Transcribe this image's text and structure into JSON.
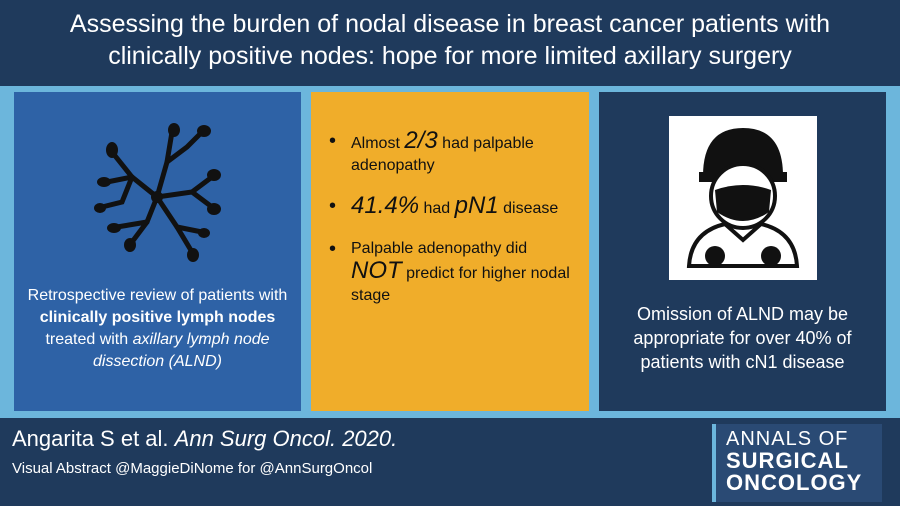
{
  "title": {
    "line1": "Assessing the burden of nodal disease in breast cancer patients with",
    "line2": "clinically positive nodes: hope for more limited axillary surgery"
  },
  "panel1": {
    "icon": "lymph-nodes-icon",
    "t1": "Retrospective review of patients with ",
    "t2": "clinically positive lymph nodes",
    "t3": " treated with ",
    "t4": "axillary lymph node dissection (ALND)"
  },
  "panel2": {
    "b1_a": "Almost ",
    "b1_b": "2/3",
    "b1_c": " had palpable adenopathy",
    "b2_a": "41.4%",
    "b2_b": " had ",
    "b2_c": "pN1",
    "b2_d": " disease",
    "b3_a": "Palpable adenopathy did ",
    "b3_b": "NOT",
    "b3_c": " predict for higher nodal stage"
  },
  "panel3": {
    "icon": "surgeon-icon",
    "text": "Omission of ALND may be appropriate for over 40% of patients with cN1 disease"
  },
  "footer": {
    "cite_authors": "Angarita S et al. ",
    "cite_journal": "Ann Surg Oncol. 2020.",
    "credit": "Visual Abstract @MaggieDiNome for @AnnSurgOncol",
    "logo1": "ANNALS OF",
    "logo2": "SURGICAL",
    "logo3": "ONCOLOGY"
  }
}
